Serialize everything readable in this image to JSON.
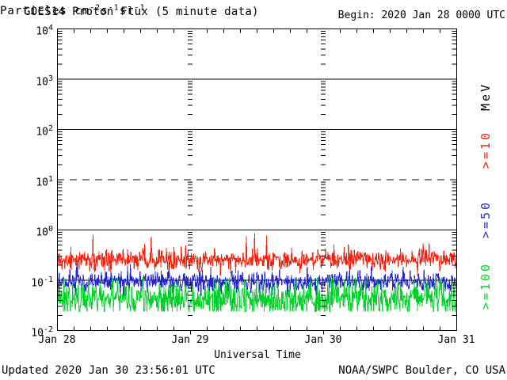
{
  "header": {
    "title": "GOES14 Proton Flux (5 minute data)",
    "begin_label": "Begin: 2020 Jan 28 0000 UTC"
  },
  "y_axis": {
    "label_parts": [
      {
        "text": "Particles cm"
      },
      {
        "sup": "-2"
      },
      {
        "text": "s"
      },
      {
        "sup": "-1"
      },
      {
        "text": "sr"
      },
      {
        "sup": "-1"
      }
    ],
    "ticks": [
      {
        "base": "10",
        "exp": "4"
      },
      {
        "base": "10",
        "exp": "3"
      },
      {
        "base": "10",
        "exp": "2"
      },
      {
        "base": "10",
        "exp": "1"
      },
      {
        "base": "10",
        "exp": "0"
      },
      {
        "base": "10",
        "exp": "-1"
      },
      {
        "base": "10",
        "exp": "-2"
      }
    ]
  },
  "x_axis": {
    "label": "Universal Time",
    "ticks": [
      "Jan 28",
      "Jan 29",
      "Jan 30",
      "Jan 31"
    ]
  },
  "right_labels": [
    {
      "text": "MeV",
      "color": "#000000"
    },
    {
      "text": ">=10",
      "color": "#f5200e"
    },
    {
      "text": ">=50",
      "color": "#2525cf"
    },
    {
      "text": ">=100",
      "color": "#00d22a"
    }
  ],
  "footer": {
    "updated": "Updated 2020 Jan 30 23:56:01 UTC",
    "source": "NOAA/SWPC Boulder, CO USA"
  },
  "chart_data": {
    "type": "line",
    "title": "GOES14 Proton Flux (5 minute data)",
    "xlabel": "Universal Time",
    "ylabel": "Particles cm^-2 s^-1 sr^-1",
    "x_start": "2020 Jan 28 0000 UTC",
    "x_end": "2020 Jan 31 0000 UTC",
    "x_tick_labels": [
      "Jan 28",
      "Jan 29",
      "Jan 30",
      "Jan 31"
    ],
    "days": 3,
    "points_per_day": 288,
    "cadence_minutes": 5,
    "y_scale": "log10",
    "ylim": [
      0.01,
      10000
    ],
    "gridlines": {
      "solid_decades": [
        3,
        2,
        0,
        -1
      ],
      "dashed_decades": [
        1
      ],
      "x_minor_tick_hours": 3,
      "day_boundary_minor_tick_columns": true
    },
    "noise_seed": 20200128,
    "series": [
      {
        "label": ">=10",
        "name": ">=10 MeV proton flux",
        "color": "#f5200e",
        "approx_flux_range": [
          0.12,
          0.9
        ],
        "approx_mean_flux": 0.25,
        "gen": {
          "base": -0.6,
          "sigma": 0.105,
          "spike_prob": 0.02,
          "spike_max": 0.42,
          "clamp_min": -0.92,
          "clamp_max": -0.05
        }
      },
      {
        "label": ">=50",
        "name": ">=50 MeV proton flux",
        "color": "#2525cf",
        "approx_flux_range": [
          0.05,
          0.2
        ],
        "approx_mean_flux": 0.09,
        "gen": {
          "base": -1.05,
          "sigma": 0.1,
          "spike_prob": 0.025,
          "spike_max": 0.33,
          "clamp_min": -1.33,
          "clamp_max": -0.62
        }
      },
      {
        "label": ">=100",
        "name": ">=100 MeV proton flux",
        "color": "#00d22a",
        "approx_flux_range": [
          0.021,
          0.12
        ],
        "approx_mean_flux": 0.04,
        "gen": {
          "base": -1.38,
          "sigma": 0.18,
          "spike_prob": 0.03,
          "spike_max": 0.38,
          "clamp_min": -1.63,
          "clamp_max": -0.95
        }
      }
    ]
  }
}
